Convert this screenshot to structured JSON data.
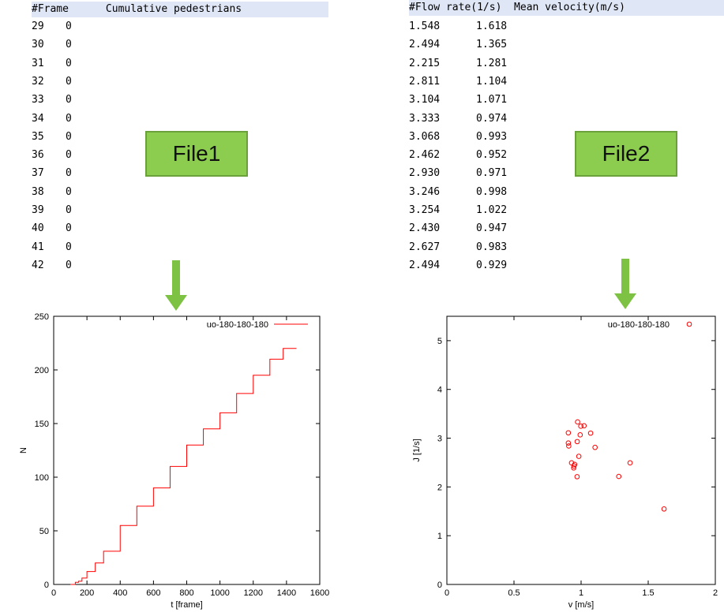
{
  "file1": {
    "header": "#Frame      Cumulative pedestrians",
    "label": "File1",
    "rows": [
      [
        "29",
        "0"
      ],
      [
        "30",
        "0"
      ],
      [
        "31",
        "0"
      ],
      [
        "32",
        "0"
      ],
      [
        "33",
        "0"
      ],
      [
        "34",
        "0"
      ],
      [
        "35",
        "0"
      ],
      [
        "36",
        "0"
      ],
      [
        "37",
        "0"
      ],
      [
        "38",
        "0"
      ],
      [
        "39",
        "0"
      ],
      [
        "40",
        "0"
      ],
      [
        "41",
        "0"
      ],
      [
        "42",
        "0"
      ]
    ]
  },
  "file2": {
    "header": "#Flow rate(1/s)  Mean velocity(m/s)",
    "label": "File2",
    "rows": [
      [
        "1.548",
        "1.618"
      ],
      [
        "2.494",
        "1.365"
      ],
      [
        "2.215",
        "1.281"
      ],
      [
        "2.811",
        "1.104"
      ],
      [
        "3.104",
        "1.071"
      ],
      [
        "3.333",
        "0.974"
      ],
      [
        "3.068",
        "0.993"
      ],
      [
        "2.462",
        "0.952"
      ],
      [
        "2.930",
        "0.971"
      ],
      [
        "3.246",
        "0.998"
      ],
      [
        "3.254",
        "1.022"
      ],
      [
        "2.430",
        "0.947"
      ],
      [
        "2.627",
        "0.983"
      ],
      [
        "2.494",
        "0.929"
      ]
    ]
  },
  "colors": {
    "arrow": "#7dc242",
    "series": "#ff0000",
    "tag_fill": "#8ccd4f"
  },
  "chart_data": [
    {
      "type": "line",
      "xlabel": "t [frame]",
      "ylabel": "N",
      "xlim": [
        0,
        1600
      ],
      "ylim": [
        0,
        250
      ],
      "xticks": [
        "0",
        "200",
        "400",
        "600",
        "800",
        "1000",
        "1200",
        "1400",
        "1600"
      ],
      "yticks": [
        "0",
        "50",
        "100",
        "150",
        "200",
        "250"
      ],
      "legend_position": "top-right",
      "series": [
        {
          "name": "uo-180-180-180",
          "x": [
            100,
            130,
            150,
            170,
            200,
            250,
            300,
            400,
            500,
            600,
            700,
            800,
            900,
            1000,
            1100,
            1200,
            1300,
            1380,
            1400,
            1460
          ],
          "y": [
            0,
            2,
            3,
            6,
            12,
            20,
            31,
            55,
            73,
            90,
            110,
            130,
            145,
            160,
            178,
            195,
            210,
            220,
            220,
            220
          ]
        }
      ]
    },
    {
      "type": "scatter",
      "xlabel": "v [m/s]",
      "ylabel": "J [1/s]",
      "xlim": [
        0,
        2
      ],
      "ylim": [
        0,
        5.5
      ],
      "xticks": [
        "0",
        "0.5",
        "1",
        "1.5",
        "2"
      ],
      "yticks": [
        "0",
        "1",
        "2",
        "3",
        "4",
        "5"
      ],
      "legend_position": "top-right",
      "series": [
        {
          "name": "uo-180-180-180",
          "points": [
            [
              1.618,
              1.548
            ],
            [
              1.365,
              2.494
            ],
            [
              1.281,
              2.215
            ],
            [
              1.104,
              2.811
            ],
            [
              1.071,
              3.104
            ],
            [
              0.974,
              3.333
            ],
            [
              0.993,
              3.068
            ],
            [
              0.952,
              2.462
            ],
            [
              0.971,
              2.93
            ],
            [
              0.998,
              3.246
            ],
            [
              1.022,
              3.254
            ],
            [
              0.947,
              2.43
            ],
            [
              0.983,
              2.627
            ],
            [
              0.929,
              2.494
            ],
            [
              0.905,
              3.11
            ],
            [
              0.905,
              2.9
            ],
            [
              0.908,
              2.84
            ],
            [
              0.945,
              2.39
            ],
            [
              0.97,
              2.21
            ]
          ]
        }
      ]
    }
  ]
}
